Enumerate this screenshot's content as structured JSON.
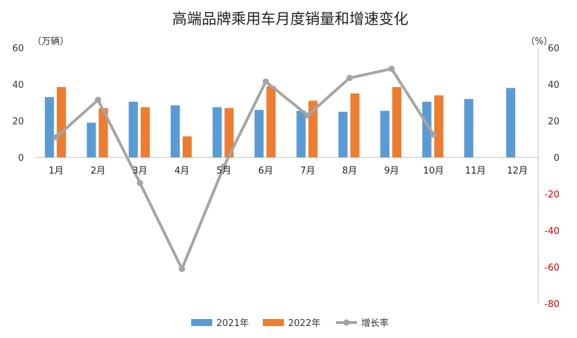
{
  "chart_data": {
    "type": "bar",
    "title": "高端品牌乘用车月度销量和增速变化",
    "y_left_unit": "（万辆）",
    "y_right_unit": "（%）",
    "y_left_range": [
      0,
      60
    ],
    "y_left_ticks": [
      "0",
      "20",
      "40",
      "60"
    ],
    "y_right_range": [
      -80,
      60
    ],
    "y_right_ticks": [
      "60",
      "40",
      "20",
      "0",
      "-20",
      "-40",
      "-60",
      "-80"
    ],
    "categories": [
      "1月",
      "2月",
      "3月",
      "4月",
      "5月",
      "6月",
      "7月",
      "8月",
      "9月",
      "10月",
      "11月",
      "12月"
    ],
    "series": [
      {
        "name": "2021年",
        "type": "bar",
        "axis": "left",
        "color": "#5b9bd5",
        "values": [
          33,
          19,
          30.5,
          28.5,
          27.5,
          26,
          25.5,
          25,
          25.5,
          30.5,
          32,
          38
        ]
      },
      {
        "name": "2022年",
        "type": "bar",
        "axis": "left",
        "color": "#ed7d31",
        "values": [
          38.5,
          27,
          27.5,
          11.5,
          27,
          39,
          31,
          35,
          38.5,
          34,
          null,
          null
        ]
      },
      {
        "name": "增长率",
        "type": "line",
        "axis": "right",
        "color": "#a5a5a5",
        "values": [
          11,
          31.5,
          -14,
          -61,
          -5,
          41.5,
          23,
          43.5,
          48.5,
          12.5,
          null,
          null
        ]
      }
    ],
    "legend_position": "bottom",
    "grid": false
  }
}
